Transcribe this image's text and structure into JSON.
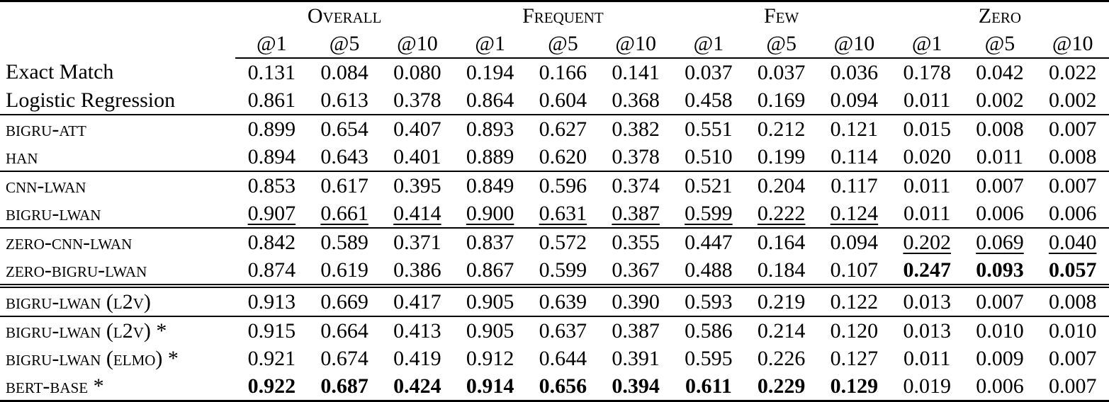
{
  "table": {
    "groups": [
      {
        "label": "Overall"
      },
      {
        "label": "Frequent"
      },
      {
        "label": "Few"
      },
      {
        "label": "Zero"
      }
    ],
    "subheaders": [
      "@1",
      "@5",
      "@10",
      "@1",
      "@5",
      "@10",
      "@1",
      "@5",
      "@10",
      "@1",
      "@5",
      "@10"
    ],
    "rows": [
      {
        "label": "Exact Match",
        "smallcaps": false,
        "rule_above": "none",
        "values": [
          "0.131",
          "0.084",
          "0.080",
          "0.194",
          "0.166",
          "0.141",
          "0.037",
          "0.037",
          "0.036",
          "0.178",
          "0.042",
          "0.022"
        ],
        "styles": [
          "n",
          "n",
          "n",
          "n",
          "n",
          "n",
          "n",
          "n",
          "n",
          "n",
          "n",
          "n"
        ]
      },
      {
        "label": "Logistic Regression",
        "smallcaps": false,
        "rule_above": "none",
        "values": [
          "0.861",
          "0.613",
          "0.378",
          "0.864",
          "0.604",
          "0.368",
          "0.458",
          "0.169",
          "0.094",
          "0.011",
          "0.002",
          "0.002"
        ],
        "styles": [
          "n",
          "n",
          "n",
          "n",
          "n",
          "n",
          "n",
          "n",
          "n",
          "n",
          "n",
          "n"
        ]
      },
      {
        "label": "BIGRU-ATT",
        "smallcaps": true,
        "rule_above": "single",
        "values": [
          "0.899",
          "0.654",
          "0.407",
          "0.893",
          "0.627",
          "0.382",
          "0.551",
          "0.212",
          "0.121",
          "0.015",
          "0.008",
          "0.007"
        ],
        "styles": [
          "n",
          "n",
          "n",
          "n",
          "n",
          "n",
          "n",
          "n",
          "n",
          "n",
          "n",
          "n"
        ]
      },
      {
        "label": "HAN",
        "smallcaps": true,
        "rule_above": "none",
        "values": [
          "0.894",
          "0.643",
          "0.401",
          "0.889",
          "0.620",
          "0.378",
          "0.510",
          "0.199",
          "0.114",
          "0.020",
          "0.011",
          "0.008"
        ],
        "styles": [
          "n",
          "n",
          "n",
          "n",
          "n",
          "n",
          "n",
          "n",
          "n",
          "n",
          "n",
          "n"
        ]
      },
      {
        "label": "CNN-LWAN",
        "smallcaps": true,
        "rule_above": "single",
        "values": [
          "0.853",
          "0.617",
          "0.395",
          "0.849",
          "0.596",
          "0.374",
          "0.521",
          "0.204",
          "0.117",
          "0.011",
          "0.007",
          "0.007"
        ],
        "styles": [
          "n",
          "n",
          "n",
          "n",
          "n",
          "n",
          "n",
          "n",
          "n",
          "n",
          "n",
          "n"
        ]
      },
      {
        "label": "BIGRU-LWAN",
        "smallcaps": true,
        "rule_above": "none",
        "values": [
          "0.907",
          "0.661",
          "0.414",
          "0.900",
          "0.631",
          "0.387",
          "0.599",
          "0.222",
          "0.124",
          "0.011",
          "0.006",
          "0.006"
        ],
        "styles": [
          "u",
          "u",
          "u",
          "u",
          "u",
          "u",
          "u",
          "u",
          "u",
          "n",
          "n",
          "n"
        ]
      },
      {
        "label": "ZERO-CNN-LWAN",
        "smallcaps": true,
        "rule_above": "single",
        "values": [
          "0.842",
          "0.589",
          "0.371",
          "0.837",
          "0.572",
          "0.355",
          "0.447",
          "0.164",
          "0.094",
          "0.202",
          "0.069",
          "0.040"
        ],
        "styles": [
          "n",
          "n",
          "n",
          "n",
          "n",
          "n",
          "n",
          "n",
          "n",
          "u",
          "u",
          "u"
        ]
      },
      {
        "label": "ZERO-BIGRU-LWAN",
        "smallcaps": true,
        "rule_above": "none",
        "values": [
          "0.874",
          "0.619",
          "0.386",
          "0.867",
          "0.599",
          "0.367",
          "0.488",
          "0.184",
          "0.107",
          "0.247",
          "0.093",
          "0.057"
        ],
        "styles": [
          "n",
          "n",
          "n",
          "n",
          "n",
          "n",
          "n",
          "n",
          "n",
          "b",
          "b",
          "b"
        ]
      },
      {
        "label": "BIGRU-LWAN (L2V)",
        "smallcaps": true,
        "rule_above": "double",
        "values": [
          "0.913",
          "0.669",
          "0.417",
          "0.905",
          "0.639",
          "0.390",
          "0.593",
          "0.219",
          "0.122",
          "0.013",
          "0.007",
          "0.008"
        ],
        "styles": [
          "n",
          "n",
          "n",
          "n",
          "n",
          "n",
          "n",
          "n",
          "n",
          "n",
          "n",
          "n"
        ]
      },
      {
        "label": "BIGRU-LWAN (L2V) *",
        "smallcaps": true,
        "rule_above": "single",
        "values": [
          "0.915",
          "0.664",
          "0.413",
          "0.905",
          "0.637",
          "0.387",
          "0.586",
          "0.214",
          "0.120",
          "0.013",
          "0.010",
          "0.010"
        ],
        "styles": [
          "n",
          "n",
          "n",
          "n",
          "n",
          "n",
          "n",
          "n",
          "n",
          "n",
          "n",
          "n"
        ]
      },
      {
        "label": "BIGRU-LWAN (ELMO) *",
        "smallcaps": true,
        "rule_above": "none",
        "values": [
          "0.921",
          "0.674",
          "0.419",
          "0.912",
          "0.644",
          "0.391",
          "0.595",
          "0.226",
          "0.127",
          "0.011",
          "0.009",
          "0.007"
        ],
        "styles": [
          "n",
          "n",
          "n",
          "n",
          "n",
          "n",
          "n",
          "n",
          "n",
          "n",
          "n",
          "n"
        ]
      },
      {
        "label": "BERT-BASE *",
        "smallcaps": true,
        "rule_above": "none",
        "values": [
          "0.922",
          "0.687",
          "0.424",
          "0.914",
          "0.656",
          "0.394",
          "0.611",
          "0.229",
          "0.129",
          "0.019",
          "0.006",
          "0.007"
        ],
        "styles": [
          "b",
          "b",
          "b",
          "b",
          "b",
          "b",
          "b",
          "b",
          "b",
          "n",
          "n",
          "n"
        ]
      }
    ]
  }
}
